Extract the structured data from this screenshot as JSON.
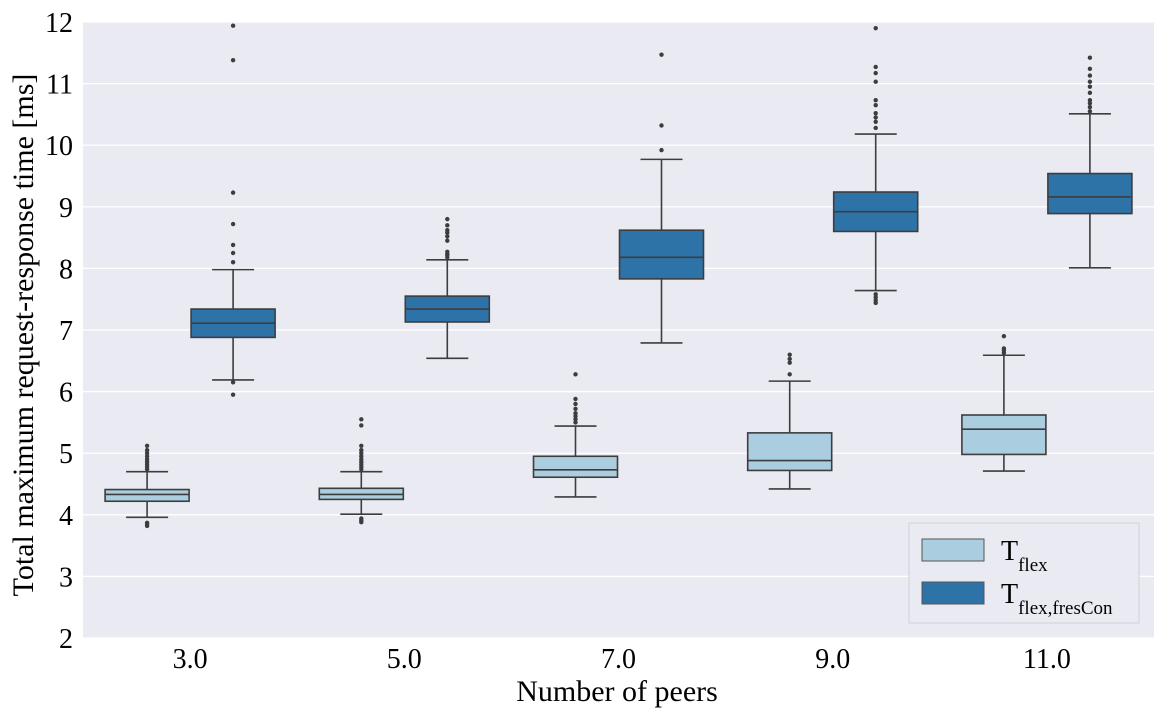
{
  "chart_data": {
    "type": "boxplot",
    "xlabel": "Number of peers",
    "ylabel": "Total maximum request-response time [ms]",
    "categories": [
      "3.0",
      "5.0",
      "7.0",
      "9.0",
      "11.0"
    ],
    "ylim": [
      2,
      12
    ],
    "yticks": [
      "2",
      "3",
      "4",
      "5",
      "6",
      "7",
      "8",
      "9",
      "10",
      "11",
      "12"
    ],
    "grid": true,
    "legend_position": "bottom-right",
    "series": [
      {
        "name_main": "T",
        "name_sub": "flex",
        "color": "#abcde0",
        "boxes": [
          {
            "whislo": 3.96,
            "q1": 4.22,
            "med": 4.33,
            "q3": 4.41,
            "whishi": 4.7,
            "fliers": [
              3.82,
              3.85,
              3.87,
              4.74,
              4.78,
              4.82,
              4.86,
              4.9,
              4.95,
              5.0,
              5.05,
              5.12
            ]
          },
          {
            "whislo": 4.01,
            "q1": 4.25,
            "med": 4.33,
            "q3": 4.43,
            "whishi": 4.7,
            "fliers": [
              3.88,
              3.91,
              3.94,
              4.74,
              4.78,
              4.82,
              4.86,
              4.9,
              4.95,
              5.0,
              5.05,
              5.12,
              5.45,
              5.55
            ]
          },
          {
            "whislo": 4.29,
            "q1": 4.61,
            "med": 4.73,
            "q3": 4.95,
            "whishi": 5.44,
            "fliers": [
              5.5,
              5.55,
              5.6,
              5.65,
              5.72,
              5.8,
              5.88,
              6.28
            ]
          },
          {
            "whislo": 4.42,
            "q1": 4.72,
            "med": 4.88,
            "q3": 5.33,
            "whishi": 6.17,
            "fliers": [
              6.28,
              6.47,
              6.53,
              6.6
            ]
          },
          {
            "whislo": 4.71,
            "q1": 4.98,
            "med": 5.39,
            "q3": 5.62,
            "whishi": 6.59,
            "fliers": [
              6.63,
              6.67,
              6.7,
              6.9
            ]
          }
        ]
      },
      {
        "name_main": "T",
        "name_sub": "flex,fresCon",
        "color": "#2e73a8",
        "boxes": [
          {
            "whislo": 6.19,
            "q1": 6.88,
            "med": 7.11,
            "q3": 7.34,
            "whishi": 7.98,
            "fliers": [
              5.95,
              6.15,
              8.1,
              8.25,
              8.38,
              8.72,
              9.23,
              11.38,
              11.94
            ]
          },
          {
            "whislo": 6.54,
            "q1": 7.13,
            "med": 7.34,
            "q3": 7.55,
            "whishi": 8.14,
            "fliers": [
              8.23,
              8.18,
              8.22,
              8.27,
              8.45,
              8.52,
              8.58,
              8.62,
              8.7,
              8.8
            ]
          },
          {
            "whislo": 6.79,
            "q1": 7.83,
            "med": 8.18,
            "q3": 8.62,
            "whishi": 9.77,
            "fliers": [
              9.92,
              10.32,
              11.47
            ]
          },
          {
            "whislo": 7.64,
            "q1": 8.6,
            "med": 8.92,
            "q3": 9.24,
            "whishi": 10.18,
            "fliers": [
              7.44,
              7.48,
              7.53,
              7.58,
              10.28,
              10.38,
              10.45,
              10.52,
              10.65,
              10.73,
              11.03,
              11.17,
              11.27,
              11.9
            ]
          },
          {
            "whislo": 8.01,
            "q1": 8.89,
            "med": 9.16,
            "q3": 9.54,
            "whishi": 10.51,
            "fliers": [
              10.55,
              10.62,
              10.68,
              10.73,
              10.85,
              10.95,
              11.03,
              11.13,
              11.24,
              11.42
            ]
          }
        ]
      }
    ]
  }
}
